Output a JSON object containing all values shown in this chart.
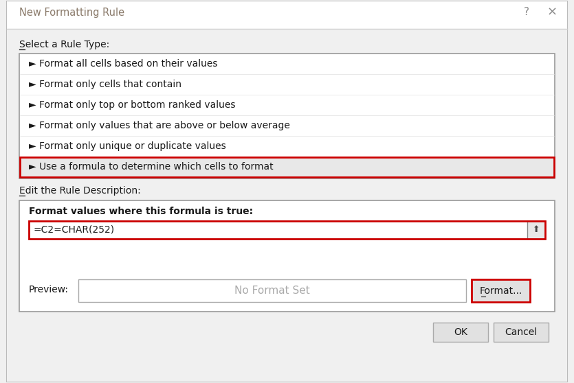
{
  "title": "New Formatting Rule",
  "title_color": "#8a7a6a",
  "bg_color": "#f0f0f0",
  "dialog_bg": "#f0f0f0",
  "white": "#ffffff",
  "border_color": "#aaaaaa",
  "red_border": "#cc0000",
  "section1_label": "Select a Rule Type:",
  "rule_items": [
    "► Format all cells based on their values",
    "► Format only cells that contain",
    "► Format only top or bottom ranked values",
    "► Format only values that are above or below average",
    "► Format only unique or duplicate values",
    "► Use a formula to determine which cells to format"
  ],
  "selected_item_index": 5,
  "selected_item_bg": "#e8e8e8",
  "section2_label": "Edit the Rule Description:",
  "formula_label": "Format values where this formula is true:",
  "formula_value": "=C2=CHAR(252)",
  "preview_label": "Preview:",
  "preview_text": "No Format Set",
  "format_btn": "Format...",
  "ok_btn": "OK",
  "cancel_btn": "Cancel",
  "text_color": "#1a1a1a",
  "btn_bg": "#e1e1e1",
  "header_bg": "#ffffff",
  "separator_color": "#d0d0d0"
}
